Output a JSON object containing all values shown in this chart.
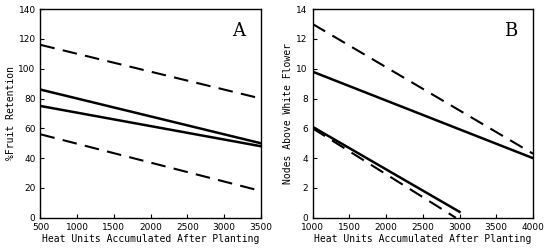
{
  "panel_A": {
    "label": "A",
    "xlabel": "Heat Units Accumulated After Planting",
    "ylabel": "%Fruit Retention",
    "xlim": [
      500,
      3500
    ],
    "ylim": [
      0,
      140
    ],
    "xticks": [
      500,
      1000,
      1500,
      2000,
      2500,
      3000,
      3500
    ],
    "yticks": [
      0,
      20,
      40,
      60,
      80,
      100,
      120,
      140
    ],
    "lines": [
      {
        "x0": 500,
        "y0": 116.0,
        "x1": 3500,
        "y1": 80.0,
        "style": "dashed",
        "lw": 1.5
      },
      {
        "x0": 500,
        "y0": 86.0,
        "x1": 3500,
        "y1": 50.0,
        "style": "solid",
        "lw": 1.8
      },
      {
        "x0": 500,
        "y0": 75.0,
        "x1": 3500,
        "y1": 48.0,
        "style": "solid",
        "lw": 1.8
      },
      {
        "x0": 500,
        "y0": 56.0,
        "x1": 3500,
        "y1": 18.0,
        "style": "dashed",
        "lw": 1.5
      }
    ]
  },
  "panel_B": {
    "label": "B",
    "xlabel": "Heat Units Accumulated After Planting",
    "ylabel": "Nodes Above White Flower",
    "xlim": [
      1000,
      4000
    ],
    "ylim": [
      0,
      14
    ],
    "xticks": [
      1000,
      1500,
      2000,
      2500,
      3000,
      3500,
      4000
    ],
    "yticks": [
      0,
      2,
      4,
      6,
      8,
      10,
      12,
      14
    ],
    "lines": [
      {
        "x0": 1000,
        "y0": 13.0,
        "x1": 4000,
        "y1": 4.3,
        "style": "dashed",
        "lw": 1.5
      },
      {
        "x0": 1000,
        "y0": 9.8,
        "x1": 4000,
        "y1": 4.0,
        "style": "solid",
        "lw": 1.8
      },
      {
        "x0": 1000,
        "y0": 6.1,
        "x1": 3000,
        "y1": 0.4,
        "style": "solid",
        "lw": 1.8
      },
      {
        "x0": 1000,
        "y0": 6.0,
        "x1": 2950,
        "y1": 0.0,
        "style": "dashed",
        "lw": 1.5
      }
    ]
  },
  "background_color": "#ffffff",
  "line_color": "#000000",
  "label_fontsize": 7.0,
  "tick_fontsize": 6.5,
  "panel_label_fontsize": 13
}
